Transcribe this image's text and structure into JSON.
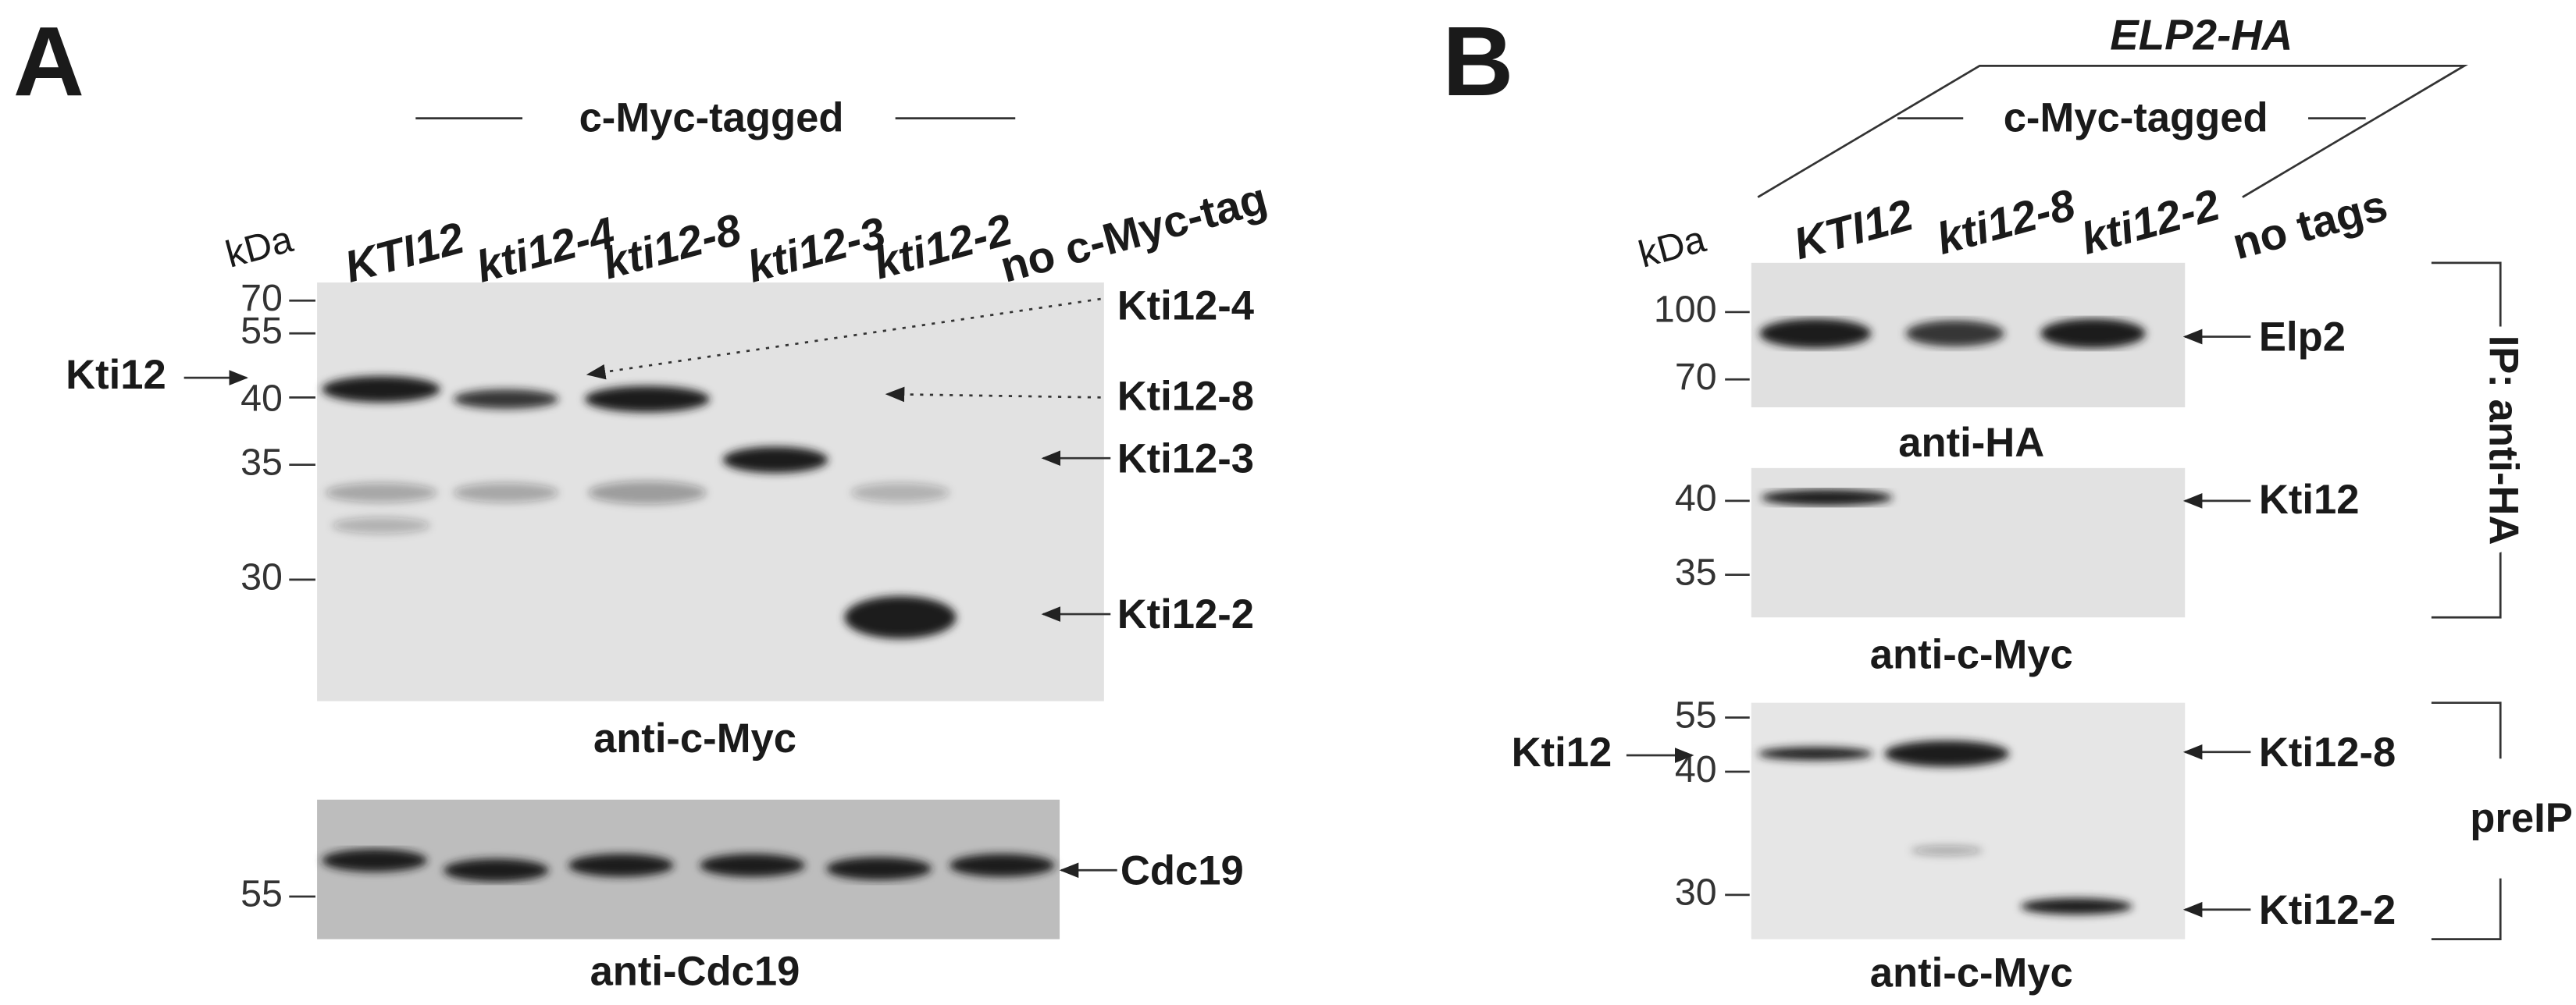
{
  "panel_a": {
    "label": "A",
    "header": "c-Myc-tagged",
    "kda": "kDa",
    "lanes": [
      "KTI12",
      "kti12-4",
      "kti12-8",
      "kti12-3",
      "kti12-2",
      "no c-Myc-tag"
    ],
    "blot1": {
      "markers": [
        "70",
        "55",
        "40",
        "35",
        "30"
      ],
      "left_label": "Kti12",
      "right_labels": [
        "Kti12-4",
        "Kti12-8",
        "Kti12-3",
        "Kti12-2"
      ],
      "antibody": "anti-c-Myc"
    },
    "blot2": {
      "markers": [
        "55"
      ],
      "right_label": "Cdc19",
      "antibody": "anti-Cdc19"
    }
  },
  "panel_b": {
    "label": "B",
    "top_header": "ELP2-HA",
    "header": "c-Myc-tagged",
    "kda": "kDa",
    "lanes": [
      "KTI12",
      "kti12-8",
      "kti12-2",
      "no tags"
    ],
    "blot1": {
      "markers": [
        "100",
        "70"
      ],
      "right_label": "Elp2",
      "antibody": "anti-HA"
    },
    "blot2": {
      "markers": [
        "40",
        "35"
      ],
      "right_label": "Kti12",
      "antibody": "anti-c-Myc"
    },
    "blot3": {
      "markers": [
        "55",
        "40",
        "30"
      ],
      "left_label": "Kti12",
      "right_labels": [
        "Kti12-8",
        "Kti12-2"
      ],
      "antibody": "anti-c-Myc"
    },
    "side_labels": [
      "IP: anti-HA",
      "preIP"
    ]
  }
}
